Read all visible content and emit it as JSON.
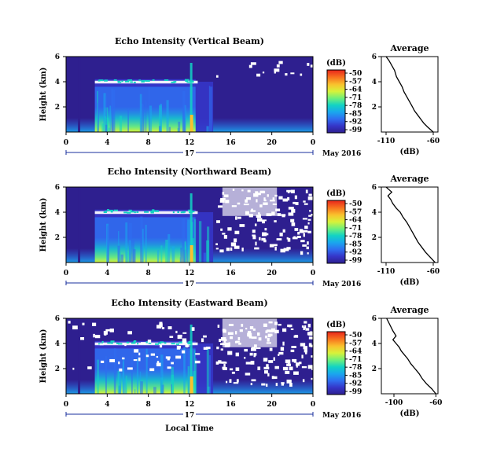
{
  "colormap": [
    "#2e1f8f",
    "#3535c8",
    "#2f6ef0",
    "#1aa7ee",
    "#12d3c4",
    "#6ff07a",
    "#d8f23a",
    "#f9c22d",
    "#f8741f",
    "#e8241b"
  ],
  "colorbar_ticks": [
    "-50",
    "-57",
    "-64",
    "-71",
    "-78",
    "-85",
    "-92",
    "-99"
  ],
  "colorbar_unit": "(dB)",
  "x_tick_labels": [
    "0",
    "4",
    "8",
    "12",
    "16",
    "20",
    "0"
  ],
  "y_tick_labels": [
    "6",
    "4",
    "2"
  ],
  "height_label": "Height  (km)",
  "day_label": "17",
  "date_label": "May 2016",
  "xlabel": "Local Time",
  "avg_title": "Average",
  "avg_ylabel": "(dB)",
  "chart_data": [
    {
      "type": "heatmap",
      "title": "Echo Intensity (Vertical Beam)",
      "ylabel": "Height  (km)",
      "xlim": [
        0,
        24
      ],
      "ylim": [
        0,
        6
      ],
      "zlim": [
        -99,
        -50
      ],
      "z_unit": "dB",
      "echo_top_km": 6,
      "rain_end_hour": 14.3
    },
    {
      "type": "line",
      "title": "Average",
      "xlabel": "(dB)",
      "xtick_labels": [
        "-110",
        "-60"
      ],
      "xlim": [
        -115,
        -55
      ],
      "ylim": [
        0,
        6
      ],
      "x": [
        -60,
        -66,
        -70,
        -73,
        -76,
        -80,
        -82,
        -85,
        -88,
        -91,
        -93,
        -96,
        -99,
        -101,
        -104,
        -107,
        -110
      ],
      "y": [
        0.0,
        0.4,
        0.7,
        1.0,
        1.3,
        1.7,
        2.0,
        2.4,
        2.8,
        3.2,
        3.6,
        4.0,
        4.4,
        4.9,
        5.3,
        5.7,
        6.0
      ]
    },
    {
      "type": "heatmap",
      "title": "Echo Intensity (Northward Beam)",
      "ylabel": "Height  (km)",
      "xlim": [
        0,
        24
      ],
      "ylim": [
        0,
        6
      ],
      "zlim": [
        -99,
        -50
      ],
      "z_unit": "dB"
    },
    {
      "type": "line",
      "title": "Average",
      "xlabel": "(dB)",
      "xtick_labels": [
        "-110",
        "-60"
      ],
      "xlim": [
        -115,
        -55
      ],
      "ylim": [
        0,
        6
      ],
      "x": [
        -58,
        -63,
        -68,
        -72,
        -76,
        -79,
        -82,
        -85,
        -88,
        -92,
        -95,
        -99,
        -103,
        -105,
        -108,
        -104,
        -107,
        -110
      ],
      "y": [
        0.0,
        0.4,
        0.8,
        1.2,
        1.6,
        2.0,
        2.4,
        2.8,
        3.2,
        3.6,
        4.0,
        4.3,
        4.7,
        5.0,
        5.3,
        5.6,
        5.8,
        6.0
      ]
    },
    {
      "type": "heatmap",
      "title": "Echo Intensity (Eastward Beam)",
      "ylabel": "Height  (km)",
      "xlim": [
        0,
        24
      ],
      "ylim": [
        0,
        6
      ],
      "zlim": [
        -99,
        -50
      ],
      "z_unit": "dB"
    },
    {
      "type": "line",
      "title": "Average",
      "xlabel": "(dB)",
      "xtick_labels": [
        "-100",
        "-60"
      ],
      "xlim": [
        -112,
        -58
      ],
      "ylim": [
        0,
        6
      ],
      "x": [
        -60,
        -64,
        -69,
        -73,
        -76,
        -80,
        -84,
        -87,
        -90,
        -93,
        -95,
        -98,
        -101,
        -98,
        -101,
        -104,
        -107
      ],
      "y": [
        0.0,
        0.4,
        0.8,
        1.2,
        1.6,
        2.0,
        2.4,
        2.8,
        3.1,
        3.4,
        3.7,
        4.0,
        4.3,
        4.6,
        5.0,
        5.5,
        6.0
      ]
    }
  ]
}
